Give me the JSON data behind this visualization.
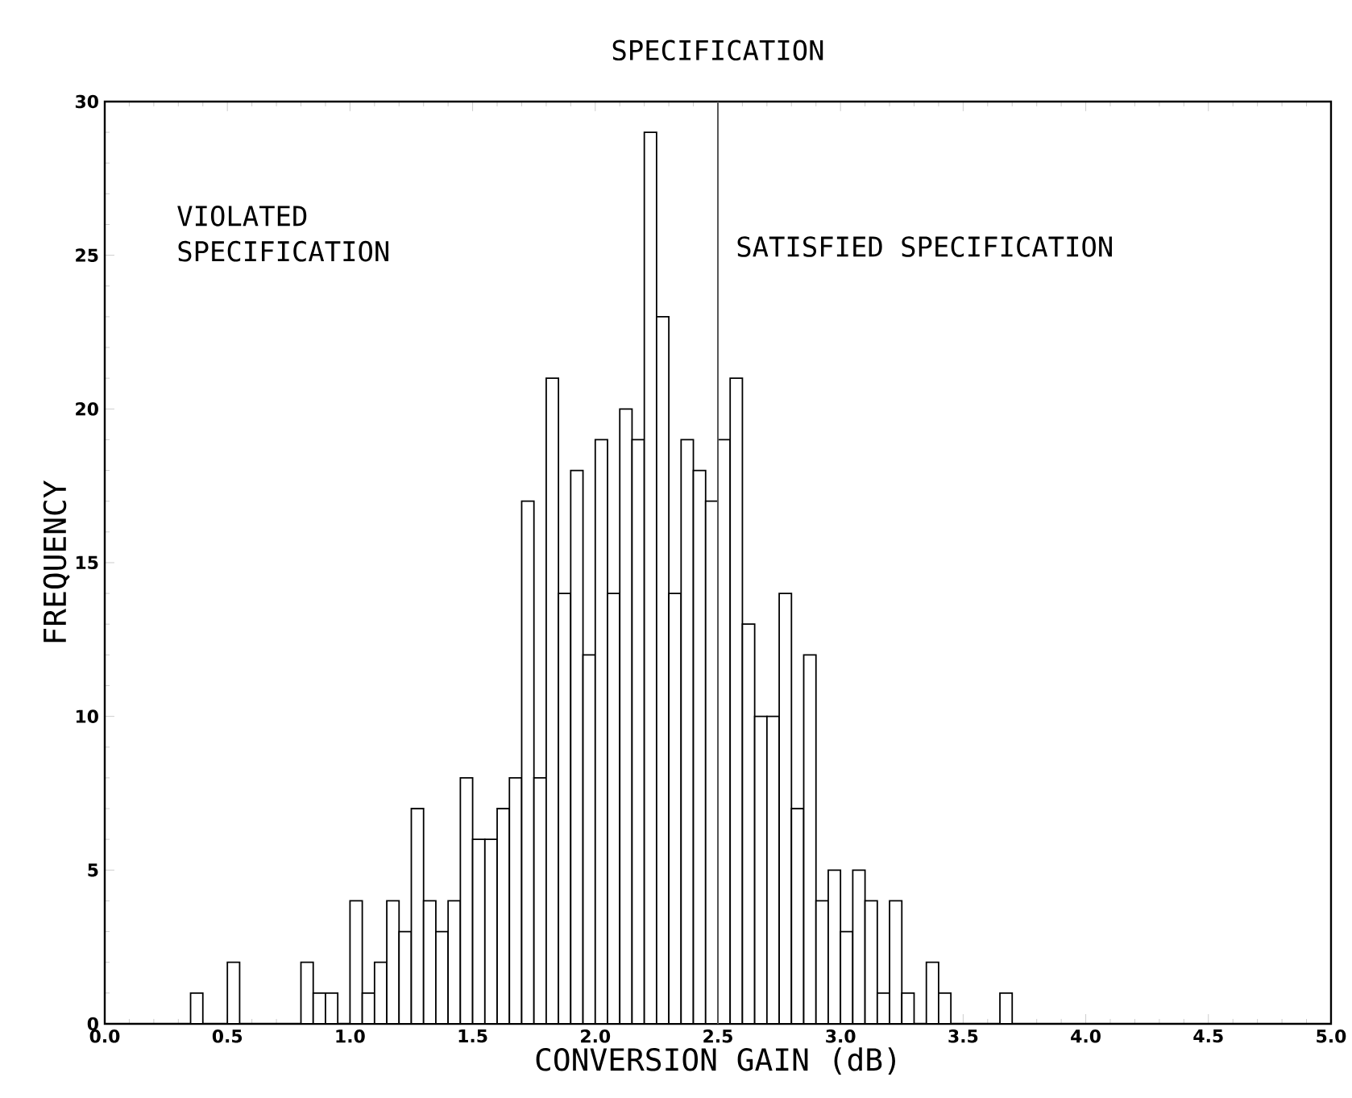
{
  "chart_data": {
    "type": "histogram",
    "xlabel": "CONVERSION GAIN (dB)",
    "ylabel": "FREQUENCY",
    "bins": [
      0.35,
      0.4,
      0.45,
      0.5,
      0.55,
      0.6,
      0.65,
      0.7,
      0.75,
      0.8,
      0.85,
      0.9,
      0.95,
      1.0,
      1.05,
      1.1,
      1.15,
      1.2,
      1.25,
      1.3,
      1.35,
      1.4,
      1.45,
      1.5,
      1.55,
      1.6,
      1.65,
      1.7,
      1.75,
      1.8,
      1.85,
      1.9,
      1.95,
      2.0,
      2.05,
      2.1,
      2.15,
      2.2,
      2.25,
      2.3,
      2.35,
      2.4,
      2.45,
      2.5,
      2.55,
      2.6,
      2.65,
      2.7,
      2.75,
      2.8,
      2.85,
      2.9,
      2.95,
      3.0,
      3.05,
      3.1,
      3.15,
      3.2,
      3.25,
      3.3,
      3.35,
      3.4,
      3.45,
      3.5,
      3.55,
      3.6,
      3.65,
      3.7
    ],
    "values": [
      1,
      0,
      0,
      2,
      0,
      0,
      0,
      0,
      0,
      2,
      1,
      1,
      0,
      4,
      1,
      2,
      4,
      3,
      7,
      4,
      3,
      4,
      8,
      6,
      6,
      7,
      8,
      17,
      8,
      21,
      14,
      18,
      12,
      19,
      14,
      20,
      19,
      29,
      23,
      14,
      19,
      18,
      17,
      19,
      21,
      13,
      10,
      10,
      14,
      7,
      12,
      4,
      5,
      3,
      5,
      4,
      1,
      4,
      1,
      0,
      2,
      1,
      0,
      0,
      0,
      0,
      1
    ],
    "color": "#000000",
    "xlim": [
      0,
      5
    ],
    "ylim": [
      0,
      30
    ],
    "xticks": [
      {
        "value": 0,
        "label": "0.0"
      },
      {
        "value": 0.5,
        "label": "0.5"
      },
      {
        "value": 1,
        "label": "1.0"
      },
      {
        "value": 1.5,
        "label": "1.5"
      },
      {
        "value": 2,
        "label": "2.0"
      },
      {
        "value": 2.5,
        "label": "2.5"
      },
      {
        "value": 3,
        "label": "3.0"
      },
      {
        "value": 3.5,
        "label": "3.5"
      },
      {
        "value": 4,
        "label": "4.0"
      },
      {
        "value": 4.5,
        "label": "4.5"
      },
      {
        "value": 5,
        "label": "5.0"
      }
    ],
    "yticks": [
      0,
      5,
      10,
      15,
      20,
      25,
      30
    ],
    "ref_lines": [
      {
        "axis": "x",
        "value": 2.5,
        "label": "SPECIFICATION",
        "color": "#555555"
      }
    ],
    "annotations": [
      "VIOLATED SPECIFICATION",
      "SATISFIED SPECIFICATION"
    ],
    "grid": false
  }
}
